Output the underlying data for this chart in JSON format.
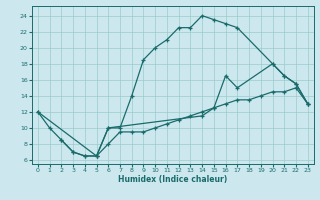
{
  "xlabel": "Humidex (Indice chaleur)",
  "bg_color": "#cce8ee",
  "grid_color": "#99cccc",
  "line_color": "#1a6b6b",
  "xlim": [
    -0.5,
    23.5
  ],
  "ylim": [
    5.5,
    25.2
  ],
  "xticks": [
    0,
    1,
    2,
    3,
    4,
    5,
    6,
    7,
    8,
    9,
    10,
    11,
    12,
    13,
    14,
    15,
    16,
    17,
    18,
    19,
    20,
    21,
    22,
    23
  ],
  "yticks": [
    6,
    8,
    10,
    12,
    14,
    16,
    18,
    20,
    22,
    24
  ],
  "line1_x": [
    0,
    1,
    2,
    3,
    4,
    5,
    6,
    7,
    8,
    9,
    10,
    11,
    12,
    13,
    14,
    15,
    16,
    17,
    20,
    21,
    22,
    23
  ],
  "line1_y": [
    12,
    10,
    8.5,
    7,
    6.5,
    6.5,
    10,
    10,
    14,
    18.5,
    20,
    21,
    22.5,
    22.5,
    24,
    23.5,
    23,
    22.5,
    18,
    16.5,
    15.5,
    13
  ],
  "line2_x": [
    0,
    5,
    6,
    14,
    15,
    16,
    17,
    20,
    21,
    22,
    23
  ],
  "line2_y": [
    12,
    6.5,
    10,
    11.5,
    12.5,
    16.5,
    15,
    18,
    16.5,
    15.5,
    13
  ],
  "line3_x": [
    2,
    3,
    4,
    5,
    6,
    7,
    8,
    9,
    10,
    11,
    12,
    13,
    14,
    15,
    16,
    17,
    18,
    19,
    20,
    21,
    22,
    23
  ],
  "line3_y": [
    8.5,
    7.0,
    6.5,
    6.5,
    8.0,
    9.5,
    9.5,
    9.5,
    10.0,
    10.5,
    11.0,
    11.5,
    12.0,
    12.5,
    13.0,
    13.5,
    13.5,
    14.0,
    14.5,
    14.5,
    15.0,
    13.0
  ]
}
